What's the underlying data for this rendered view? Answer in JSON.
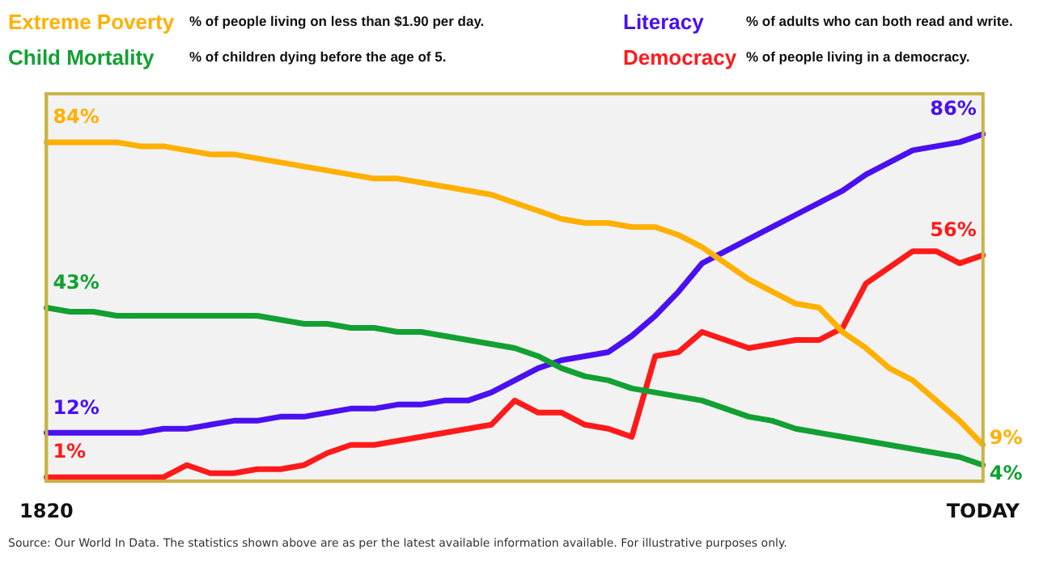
{
  "chart_data": {
    "type": "line",
    "categories": [
      "1820",
      null,
      null,
      null,
      null,
      null,
      null,
      null,
      null,
      null,
      null,
      null,
      null,
      null,
      null,
      null,
      null,
      null,
      null,
      null,
      null,
      null,
      null,
      null,
      null,
      null,
      null,
      null,
      null,
      null,
      null,
      null,
      null,
      null,
      null,
      null,
      null,
      null,
      null,
      null,
      "TODAY"
    ],
    "ylim": [
      0,
      96
    ],
    "tick_labels": "x",
    "grid": false,
    "marker": "none",
    "line_style": "solid",
    "series": [
      {
        "name": "Extreme Poverty",
        "color": "#ffb000",
        "values": [
          84,
          84,
          84,
          84,
          83,
          83,
          82,
          81,
          81,
          80,
          79,
          78,
          77,
          76,
          75,
          75,
          74,
          73,
          72,
          71,
          69,
          67,
          65,
          64,
          64,
          63,
          63,
          61,
          58,
          54,
          50,
          47,
          44,
          43,
          37,
          33,
          28,
          25,
          20,
          15,
          9
        ],
        "value_labels": [
          "84%",
          null,
          null,
          null,
          null,
          null,
          null,
          null,
          null,
          null,
          null,
          null,
          null,
          null,
          null,
          null,
          null,
          null,
          null,
          null,
          null,
          null,
          null,
          null,
          null,
          null,
          null,
          null,
          null,
          null,
          null,
          null,
          null,
          null,
          null,
          null,
          null,
          null,
          null,
          null,
          "9%"
        ]
      },
      {
        "name": "Child Mortality",
        "color": "#12a032",
        "values": [
          43,
          42,
          42,
          41,
          41,
          41,
          41,
          41,
          41,
          41,
          40,
          39,
          39,
          38,
          38,
          37,
          37,
          36,
          35,
          34,
          33,
          31,
          28,
          26,
          25,
          23,
          22,
          21,
          20,
          18,
          16,
          15,
          13,
          12,
          11,
          10,
          9,
          8,
          7,
          6,
          4
        ],
        "value_labels": [
          "43%",
          null,
          null,
          null,
          null,
          null,
          null,
          null,
          null,
          null,
          null,
          null,
          null,
          null,
          null,
          null,
          null,
          null,
          null,
          null,
          null,
          null,
          null,
          null,
          null,
          null,
          null,
          null,
          null,
          null,
          null,
          null,
          null,
          null,
          null,
          null,
          null,
          null,
          null,
          null,
          "4%"
        ]
      },
      {
        "name": "Literacy",
        "color": "#4a10f0",
        "values": [
          12,
          12,
          12,
          12,
          12,
          13,
          13,
          14,
          15,
          15,
          16,
          16,
          17,
          18,
          18,
          19,
          19,
          20,
          20,
          22,
          25,
          28,
          30,
          31,
          32,
          36,
          41,
          47,
          54,
          57,
          60,
          63,
          66,
          69,
          72,
          76,
          79,
          82,
          83,
          84,
          86
        ],
        "value_labels": [
          "12%",
          null,
          null,
          null,
          null,
          null,
          null,
          null,
          null,
          null,
          null,
          null,
          null,
          null,
          null,
          null,
          null,
          null,
          null,
          null,
          null,
          null,
          null,
          null,
          null,
          null,
          null,
          null,
          null,
          null,
          null,
          null,
          null,
          null,
          null,
          null,
          null,
          null,
          null,
          null,
          "86%"
        ]
      },
      {
        "name": "Democracy",
        "color": "#ff1a1a",
        "values": [
          1,
          1,
          1,
          1,
          1,
          1,
          4,
          2,
          2,
          3,
          3,
          4,
          7,
          9,
          9,
          10,
          11,
          12,
          13,
          14,
          20,
          17,
          17,
          14,
          13,
          11,
          31,
          32,
          37,
          35,
          33,
          34,
          35,
          35,
          38,
          49,
          53,
          57,
          57,
          54,
          56
        ],
        "value_labels": [
          "1%",
          null,
          null,
          null,
          null,
          null,
          null,
          null,
          null,
          null,
          null,
          null,
          null,
          null,
          null,
          null,
          null,
          null,
          null,
          null,
          null,
          null,
          null,
          null,
          null,
          null,
          null,
          null,
          null,
          null,
          null,
          null,
          null,
          null,
          null,
          null,
          null,
          null,
          null,
          null,
          "56%"
        ]
      }
    ],
    "annotations": [
      "% of people living on less than $1.90 per day.",
      "% of children dying before the age of 5.",
      "% of adults who can both read and write.",
      "% of people living in a democracy.",
      "Source: Our World In Data. The statistics shown above are as per the latest available information available. For illustrative purposes only."
    ]
  }
}
